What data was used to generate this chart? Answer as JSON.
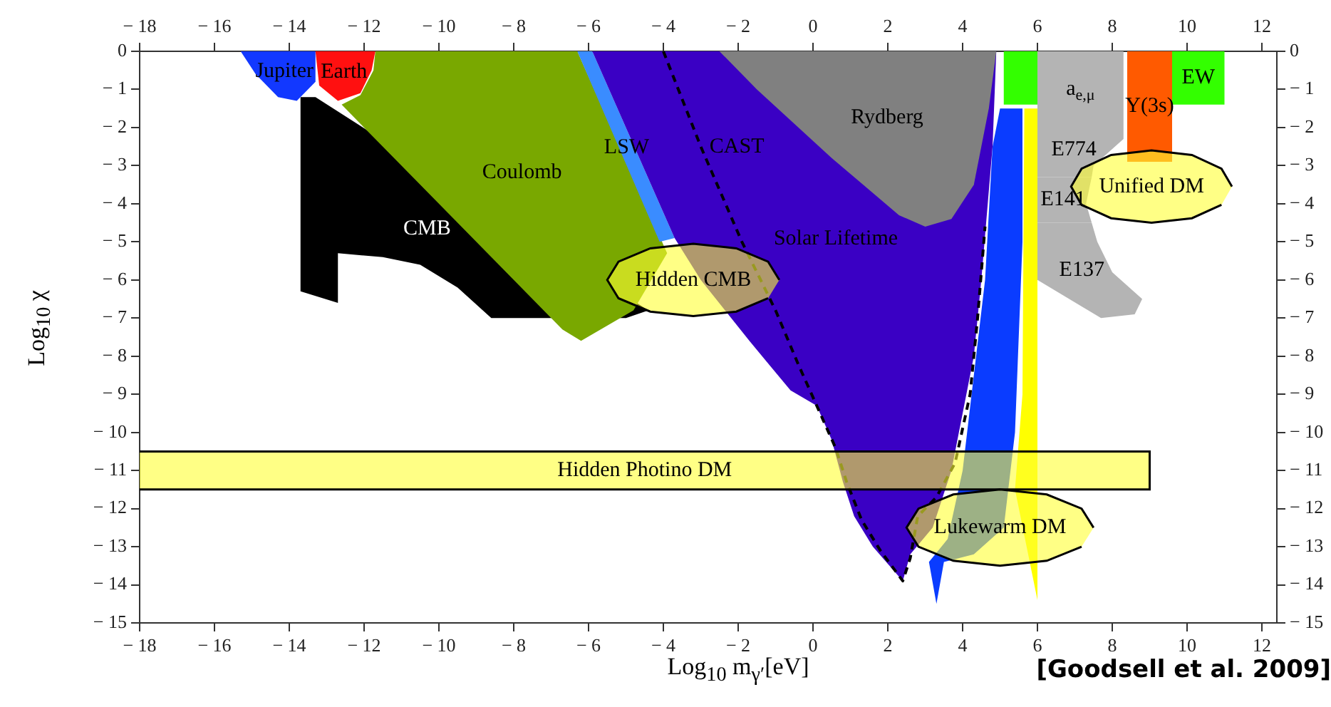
{
  "chart_data": {
    "type": "area",
    "xlabel": "Log$_{10}$ m$_{γ′}$[eV]",
    "ylabel": "Log$_{10}$ χ",
    "xlim": [
      -18,
      12.4
    ],
    "ylim": [
      -15,
      0
    ],
    "xticks": [
      -18,
      -16,
      -14,
      -12,
      -10,
      -8,
      -6,
      -4,
      -2,
      0,
      2,
      4,
      6,
      8,
      10,
      12
    ],
    "yticks": [
      0,
      -1,
      -2,
      -3,
      -4,
      -5,
      -6,
      -7,
      -8,
      -9,
      -10,
      -11,
      -12,
      -13,
      -14,
      -15
    ],
    "x2lim": [
      -18,
      12.4
    ],
    "x2ticks": [
      -18,
      -16,
      -14,
      -12,
      -10,
      -8,
      -6,
      -4,
      -2,
      0,
      2,
      4,
      6,
      8,
      10,
      12
    ],
    "y2lim": [
      -15,
      0
    ],
    "y2ticks": [
      0,
      -1,
      -2,
      -3,
      -4,
      -5,
      -6,
      -7,
      -8,
      -9,
      -10,
      -11,
      -12,
      -13,
      -14,
      -15
    ],
    "grid": false,
    "legend": false,
    "series": [
      {
        "name": "CMB",
        "color": "#000000",
        "x": [
          -13.7,
          -13.7,
          -12.7,
          -12.7,
          -11.5,
          -10.5,
          -9.5,
          -8.6,
          -5.0,
          -4.4,
          -13.3
        ],
        "values": [
          -1.2,
          -6.3,
          -6.6,
          -5.3,
          -5.4,
          -5.6,
          -6.2,
          -7.0,
          -7.0,
          -6.8,
          -1.2
        ]
      },
      {
        "name": "Coulomb",
        "color": "#79a800",
        "x": [
          -11.7,
          -6.3,
          -3.9,
          -4.8,
          -6.2,
          -6.7,
          -12.6,
          -12.1,
          -11.75
        ],
        "values": [
          0,
          0,
          -5.3,
          -6.8,
          -7.6,
          -7.3,
          -1.4,
          -1.15,
          -0.5
        ]
      },
      {
        "name": "Jupiter",
        "color": "#1238ff",
        "x": [
          -15.3,
          -14.9,
          -14.3,
          -13.8,
          -13.3,
          -13.3
        ],
        "values": [
          0,
          -0.6,
          -1.2,
          -1.3,
          -0.8,
          0
        ]
      },
      {
        "name": "Earth",
        "color": "#ff1010",
        "x": [
          -13.3,
          -13.2,
          -12.7,
          -12.1,
          -11.8,
          -11.7
        ],
        "values": [
          0,
          -0.9,
          -1.3,
          -1.1,
          -0.5,
          0
        ]
      },
      {
        "name": "LSW",
        "color": "#3a8cff",
        "x": [
          -6.3,
          -5.9,
          -3.7,
          -4.1
        ],
        "values": [
          0,
          0,
          -4.9,
          -5.0
        ]
      },
      {
        "name": "Solar Lifetime",
        "color": "#3a00c4",
        "x": [
          -5.9,
          4.9,
          4.8,
          4.5,
          4.3,
          3.7,
          3.2,
          2.6,
          2.4,
          1.6,
          1.1,
          0.8,
          0.5,
          0.1,
          -0.6,
          -1.7,
          -3.0,
          -3.7
        ],
        "values": [
          0,
          0,
          -2.5,
          -6.0,
          -8.0,
          -11.0,
          -12.5,
          -13.2,
          -13.9,
          -13.0,
          -12.2,
          -11.3,
          -10.2,
          -9.3,
          -8.9,
          -7.6,
          -6.0,
          -4.9
        ]
      },
      {
        "name": "Rydberg",
        "color": "#808080",
        "x": [
          -2.5,
          4.9,
          4.7,
          4.3,
          3.7,
          3.0,
          2.3,
          0.5,
          -1.5
        ],
        "values": [
          0,
          0,
          -1.5,
          -3.5,
          -4.4,
          -4.6,
          -4.3,
          -2.8,
          -1.0
        ]
      },
      {
        "color": "#0a3cff",
        "x": [
          5.0,
          5.6,
          5.6,
          5.4,
          5.1,
          4.3,
          3.5,
          3.3,
          3.1,
          3.6,
          4.0,
          4.6,
          4.8
        ],
        "values": [
          -1.5,
          -1.5,
          -5.0,
          -10.0,
          -12.5,
          -13.2,
          -13.4,
          -14.5,
          -13.4,
          -12.8,
          -11.0,
          -6.0,
          -2.5
        ]
      },
      {
        "color": "#ffff00",
        "x": [
          5.65,
          6.0,
          6.0,
          5.4,
          5.6
        ],
        "values": [
          -1.5,
          -1.5,
          -14.4,
          -11.5,
          -9.0
        ]
      },
      {
        "color": "#33ff00",
        "x": [
          5.1,
          6.0,
          6.0,
          5.1
        ],
        "values": [
          0,
          0,
          -1.4,
          -1.4
        ]
      },
      {
        "name": "a$_{e,μ}$",
        "color": "#b4b4b4",
        "x": [
          6.0,
          8.3,
          8.3,
          6.0
        ],
        "values": [
          0,
          0,
          -2.0,
          -2.0
        ]
      },
      {
        "name": "E774",
        "color": "#b4b4b4",
        "x": [
          6.0,
          8.3,
          8.3,
          7.5,
          7.45,
          6.0
        ],
        "values": [
          -2.0,
          -2.0,
          -2.3,
          -3.0,
          -3.3,
          -3.3
        ]
      },
      {
        "name": "E141",
        "color": "#b4b4b4",
        "x": [
          6.0,
          7.45,
          7.3,
          7.45,
          6.0
        ],
        "values": [
          -3.3,
          -3.3,
          -4.0,
          -4.5,
          -4.5
        ]
      },
      {
        "name": "E137",
        "color": "#b4b4b4",
        "x": [
          6.0,
          7.45,
          7.6,
          8.0,
          8.8,
          8.6,
          7.7,
          6.0
        ],
        "values": [
          -4.5,
          -4.5,
          -5.0,
          -5.8,
          -6.5,
          -6.9,
          -7.0,
          -6.0
        ]
      },
      {
        "name": "Υ(3s)",
        "color": "#ff5a00",
        "x": [
          8.4,
          9.6,
          9.6,
          8.4
        ],
        "values": [
          0,
          0,
          -2.9,
          -2.9
        ]
      },
      {
        "name": "EW",
        "color": "#33ff00",
        "x": [
          9.6,
          11.0,
          11.0,
          9.6
        ],
        "values": [
          0,
          0,
          -1.4,
          -1.4
        ]
      },
      {
        "name": "CAST",
        "type": "line",
        "line_style": "dashed",
        "color": "#000000",
        "x": [
          -4.0,
          -3.0,
          -1.9,
          -1.0,
          -0.4,
          0.1,
          0.6,
          0.9,
          1.3,
          1.8,
          2.4,
          2.6,
          2.8,
          3.3,
          3.8,
          4.2,
          4.4,
          4.6
        ],
        "values": [
          0,
          -2.5,
          -5.0,
          -6.8,
          -8.2,
          -9.3,
          -10.4,
          -11.3,
          -12.3,
          -13.1,
          -13.9,
          -13.3,
          -12.2,
          -11.7,
          -10.8,
          -9.0,
          -7.0,
          -4.6
        ]
      },
      {
        "name": "Hidden Photino DM",
        "line_style": "solid",
        "color": "#ffff33",
        "x": [
          -18,
          9.0,
          9.0,
          -18
        ],
        "values": [
          -10.5,
          -10.5,
          -11.5,
          -11.5
        ]
      },
      {
        "name": "Hidden CMB",
        "line_style": "solid",
        "color": "#ffff33",
        "x": [
          -0.9,
          -1.2,
          -2.05,
          -3.2,
          -4.35,
          -5.2,
          -5.5,
          -5.2,
          -4.35,
          -3.2,
          -2.05,
          -1.2
        ],
        "values": [
          -6.0,
          -5.52,
          -5.17,
          -5.05,
          -5.17,
          -5.52,
          -6.0,
          -6.48,
          -6.83,
          -6.95,
          -6.83,
          -6.48
        ]
      },
      {
        "name": "Unified DM",
        "line_style": "solid",
        "color": "#ffff33",
        "x": [
          11.2,
          10.92,
          10.13,
          9.05,
          7.97,
          7.18,
          6.9,
          7.18,
          7.97,
          9.05,
          10.13,
          10.92
        ],
        "values": [
          -3.55,
          -3.08,
          -2.72,
          -2.6,
          -2.72,
          -3.08,
          -3.55,
          -4.03,
          -4.38,
          -4.5,
          -4.38,
          -4.03
        ]
      },
      {
        "name": "Lukewarm DM",
        "line_style": "solid",
        "color": "#ffff33",
        "x": [
          7.5,
          7.18,
          6.25,
          5.0,
          3.75,
          2.82,
          2.5,
          2.82,
          3.75,
          5.0,
          6.25,
          7.18
        ],
        "values": [
          -12.5,
          -12.0,
          -11.63,
          -11.5,
          -11.63,
          -12.0,
          -12.5,
          -13.0,
          -13.37,
          -13.5,
          -13.37,
          -13.0
        ]
      }
    ],
    "annotations": [
      "[Goodsell et al. 2009]"
    ]
  }
}
